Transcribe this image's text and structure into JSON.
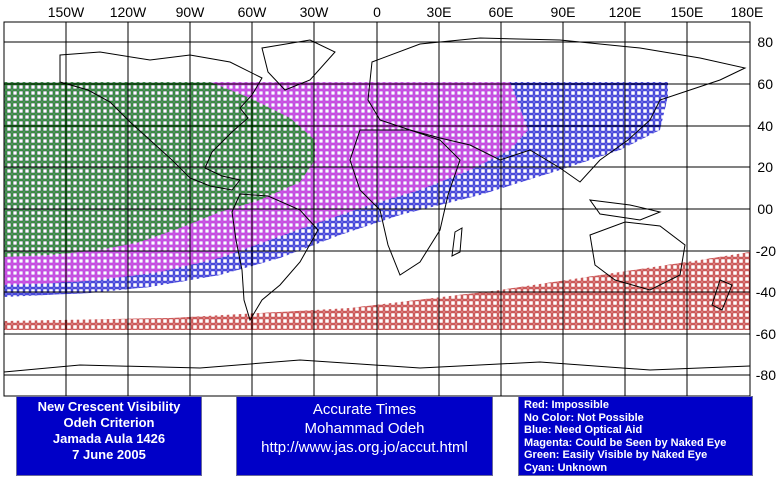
{
  "map": {
    "lon_labels": [
      "150W",
      "120W",
      "90W",
      "60W",
      "30W",
      "0",
      "30E",
      "60E",
      "90E",
      "120E",
      "150E",
      "180E"
    ],
    "lat_labels": [
      "80",
      "60",
      "40",
      "20",
      "00",
      "-20",
      "-40",
      "-60",
      "-80"
    ],
    "colors": {
      "impossible": "#c03030",
      "optical_aid": "#1a1ad0",
      "naked_eye_possible": "#e040e0",
      "easily_visible": "#1a9a1a",
      "grid": "#000000"
    }
  },
  "info_left": {
    "line1": "New Crescent Visibility",
    "line2": "Odeh Criterion",
    "line3": "Jamada Aula 1426",
    "line4": "7 June 2005"
  },
  "info_mid": {
    "line1": "Accurate Times",
    "line2": "Mohammad Odeh",
    "line3": "http://www.jas.org.jo/accut.html"
  },
  "legend": {
    "red": "Red: Impossible",
    "none": "No Color: Not Possible",
    "blue": "Blue: Need Optical Aid",
    "magenta": "Magenta: Could be Seen by Naked Eye",
    "green": "Green: Easily Visible by Naked Eye",
    "cyan": "Cyan: Unknown"
  }
}
